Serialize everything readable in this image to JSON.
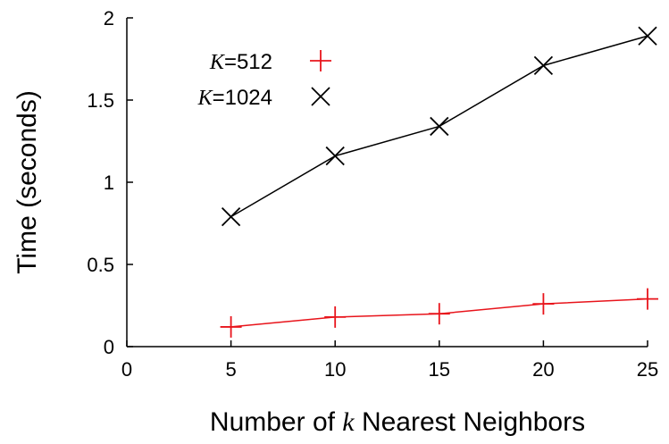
{
  "chart_data": {
    "type": "line",
    "xlabel_parts": [
      "Number of ",
      "k",
      " Nearest Neighbors"
    ],
    "ylabel": "Time (seconds)",
    "xlim": [
      0,
      25
    ],
    "ylim": [
      0,
      2
    ],
    "xticks": [
      0,
      5,
      10,
      15,
      20,
      25
    ],
    "yticks": [
      0,
      0.5,
      1,
      1.5,
      2
    ],
    "grid": false,
    "legend_placement": "top-left",
    "x": [
      5,
      10,
      15,
      20,
      25
    ],
    "series": [
      {
        "name_var": "K",
        "name_value": "=512",
        "marker": "plus",
        "color": "#e8141b",
        "values": [
          0.12,
          0.18,
          0.2,
          0.26,
          0.29
        ]
      },
      {
        "name_var": "K",
        "name_value": "=1024",
        "marker": "cross",
        "color": "#000000",
        "values": [
          0.79,
          1.16,
          1.34,
          1.71,
          1.89
        ]
      }
    ]
  }
}
